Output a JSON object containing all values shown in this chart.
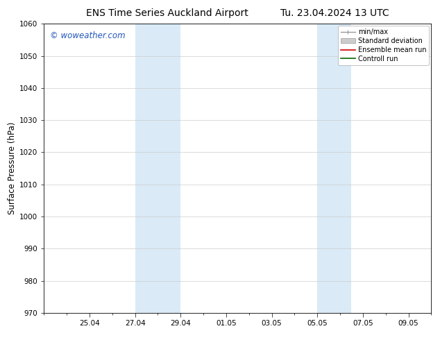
{
  "title_left": "ENS Time Series Auckland Airport",
  "title_right": "Tu. 23.04.2024 13 UTC",
  "ylabel": "Surface Pressure (hPa)",
  "ylim": [
    970,
    1060
  ],
  "yticks": [
    970,
    980,
    990,
    1000,
    1010,
    1020,
    1030,
    1040,
    1050,
    1060
  ],
  "xlim": [
    0,
    17
  ],
  "xtick_labels": [
    "25.04",
    "27.04",
    "29.04",
    "01.05",
    "03.05",
    "05.05",
    "07.05",
    "09.05"
  ],
  "xtick_positions": [
    2,
    4,
    6,
    8,
    10,
    12,
    14,
    16
  ],
  "shaded_bands": [
    {
      "start": 4,
      "end": 6
    },
    {
      "start": 12,
      "end": 13.5
    }
  ],
  "shade_color": "#daeaf7",
  "watermark": "© woweather.com",
  "watermark_color": "#2255bb",
  "legend_entries": [
    {
      "label": "min/max",
      "type": "minmax",
      "color": "#999999",
      "lw": 1.0
    },
    {
      "label": "Standard deviation",
      "type": "patch",
      "color": "#cccccc"
    },
    {
      "label": "Ensemble mean run",
      "type": "line",
      "color": "#cc0000",
      "lw": 1.2
    },
    {
      "label": "Controll run",
      "type": "line",
      "color": "#006600",
      "lw": 1.2
    }
  ],
  "bg_color": "#ffffff",
  "grid_color": "#cccccc",
  "title_fontsize": 10,
  "tick_fontsize": 7.5,
  "ylabel_fontsize": 8.5,
  "legend_fontsize": 7.0,
  "watermark_fontsize": 8.5
}
